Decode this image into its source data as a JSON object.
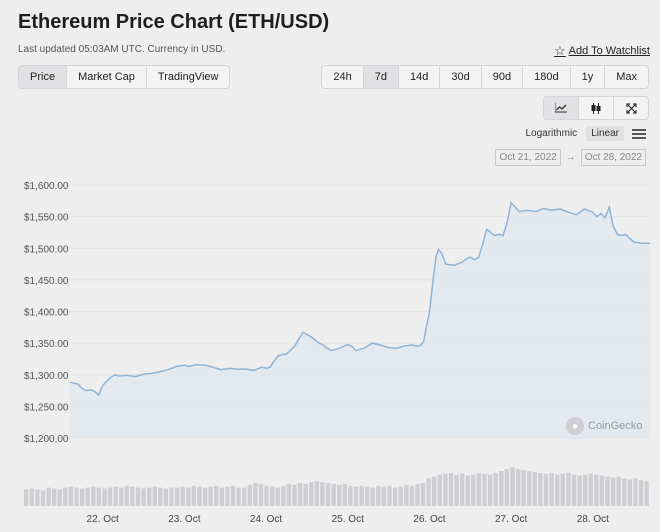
{
  "header": {
    "title": "Ethereum Price Chart (ETH/USD)",
    "subtitle": "Last updated 05:03AM UTC. Currency in USD.",
    "watchlist_label": "Add To Watchlist"
  },
  "view_tabs": [
    {
      "label": "Price",
      "active": true
    },
    {
      "label": "Market Cap",
      "active": false
    },
    {
      "label": "TradingView",
      "active": false
    }
  ],
  "range_tabs": [
    {
      "label": "24h",
      "active": false
    },
    {
      "label": "7d",
      "active": true
    },
    {
      "label": "14d",
      "active": false
    },
    {
      "label": "30d",
      "active": false
    },
    {
      "label": "90d",
      "active": false
    },
    {
      "label": "180d",
      "active": false
    },
    {
      "label": "1y",
      "active": false
    },
    {
      "label": "Max",
      "active": false
    }
  ],
  "chart_tools": {
    "line_icon": "line-chart-icon",
    "candle_icon": "candlestick-icon",
    "fullscreen_icon": "expand-icon"
  },
  "scale": {
    "options": [
      "Logarithmic",
      "Linear"
    ],
    "active": "Linear"
  },
  "date_range": {
    "from": "Oct 21, 2022",
    "arrow": "→",
    "to": "Oct 28, 2022"
  },
  "watermark": "CoinGecko",
  "colors": {
    "line": "#8fb4d6",
    "area": "#dfe7ef",
    "volume": "#cfcfd3"
  },
  "chart_data": {
    "type": "area",
    "ylim": [
      1200,
      1600
    ],
    "y_ticks": [
      1200,
      1250,
      1300,
      1350,
      1400,
      1450,
      1500,
      1550,
      1600
    ],
    "y_tick_labels": [
      "$1,200.00",
      "$1,250.00",
      "$1,300.00",
      "$1,350.00",
      "$1,400.00",
      "$1,450.00",
      "$1,500.00",
      "$1,550.00",
      "$1,600.00"
    ],
    "xlim": [
      21.6,
      28.7
    ],
    "x_ticks": [
      22,
      23,
      24,
      25,
      26,
      27,
      28
    ],
    "x_tick_labels": [
      "22. Oct",
      "23. Oct",
      "24. Oct",
      "25. Oct",
      "26. Oct",
      "27. Oct",
      "28. Oct"
    ],
    "grid": true,
    "series": [
      {
        "x": [
          21.6,
          21.7,
          21.75,
          21.8,
          21.85,
          21.9,
          21.95,
          22.0,
          22.05,
          22.1,
          22.15,
          22.2,
          22.3,
          22.4,
          22.5,
          22.6,
          22.7,
          22.8,
          22.9,
          23.0,
          23.05,
          23.15,
          23.25,
          23.35,
          23.45,
          23.55,
          23.65,
          23.75,
          23.85,
          23.95,
          24.0,
          24.05,
          24.1,
          24.15,
          24.2,
          24.25,
          24.35,
          24.45,
          24.55,
          24.6,
          24.65,
          24.7,
          24.75,
          24.8,
          24.9,
          25.0,
          25.05,
          25.1,
          25.2,
          25.3,
          25.4,
          25.5,
          25.6,
          25.7,
          25.8,
          25.85,
          25.9,
          25.93,
          25.96,
          26.0,
          26.05,
          26.08,
          26.11,
          26.15,
          26.2,
          26.3,
          26.4,
          26.45,
          26.5,
          26.55,
          26.6,
          26.65,
          26.7,
          26.75,
          26.8,
          26.85,
          26.9,
          26.95,
          27.0,
          27.1,
          27.2,
          27.3,
          27.4,
          27.5,
          27.6,
          27.7,
          27.8,
          27.9,
          28.0,
          28.05,
          28.1,
          28.15,
          28.2,
          28.25,
          28.3,
          28.35,
          28.4,
          28.5,
          28.6,
          28.7
        ],
        "y": [
          1288,
          1285,
          1278,
          1275,
          1276,
          1274,
          1268,
          1283,
          1290,
          1296,
          1300,
          1298,
          1299,
          1297,
          1301,
          1302,
          1305,
          1308,
          1313,
          1315,
          1313,
          1316,
          1315,
          1312,
          1308,
          1310,
          1309,
          1309,
          1307,
          1312,
          1310,
          1312,
          1322,
          1330,
          1332,
          1333,
          1345,
          1367,
          1360,
          1355,
          1350,
          1347,
          1342,
          1338,
          1342,
          1348,
          1345,
          1338,
          1342,
          1350,
          1347,
          1343,
          1342,
          1346,
          1347,
          1345,
          1347,
          1353,
          1375,
          1398,
          1455,
          1487,
          1498,
          1492,
          1475,
          1473,
          1478,
          1483,
          1486,
          1482,
          1485,
          1505,
          1530,
          1525,
          1520,
          1522,
          1520,
          1540,
          1572,
          1558,
          1560,
          1558,
          1563,
          1560,
          1562,
          1557,
          1553,
          1562,
          1557,
          1550,
          1555,
          1548,
          1565,
          1535,
          1522,
          1520,
          1522,
          1510,
          1508,
          1508
        ]
      }
    ],
    "volume": [
      0.18,
      0.19,
      0.18,
      0.17,
      0.2,
      0.19,
      0.18,
      0.2,
      0.21,
      0.2,
      0.19,
      0.2,
      0.21,
      0.2,
      0.19,
      0.2,
      0.21,
      0.2,
      0.22,
      0.21,
      0.2,
      0.19,
      0.2,
      0.21,
      0.2,
      0.19,
      0.2,
      0.2,
      0.21,
      0.2,
      0.22,
      0.21,
      0.2,
      0.21,
      0.22,
      0.2,
      0.21,
      0.22,
      0.2,
      0.2,
      0.23,
      0.25,
      0.24,
      0.22,
      0.21,
      0.2,
      0.22,
      0.24,
      0.23,
      0.25,
      0.24,
      0.26,
      0.27,
      0.26,
      0.25,
      0.24,
      0.23,
      0.24,
      0.22,
      0.21,
      0.22,
      0.21,
      0.2,
      0.22,
      0.21,
      0.22,
      0.2,
      0.21,
      0.23,
      0.22,
      0.24,
      0.25,
      0.3,
      0.32,
      0.34,
      0.35,
      0.36,
      0.34,
      0.35,
      0.33,
      0.34,
      0.36,
      0.35,
      0.34,
      0.36,
      0.38,
      0.4,
      0.42,
      0.4,
      0.39,
      0.38,
      0.37,
      0.36,
      0.35,
      0.36,
      0.34,
      0.35,
      0.36,
      0.34,
      0.33,
      0.34,
      0.35,
      0.34,
      0.33,
      0.32,
      0.31,
      0.32,
      0.3,
      0.29,
      0.3,
      0.28,
      0.27
    ]
  }
}
